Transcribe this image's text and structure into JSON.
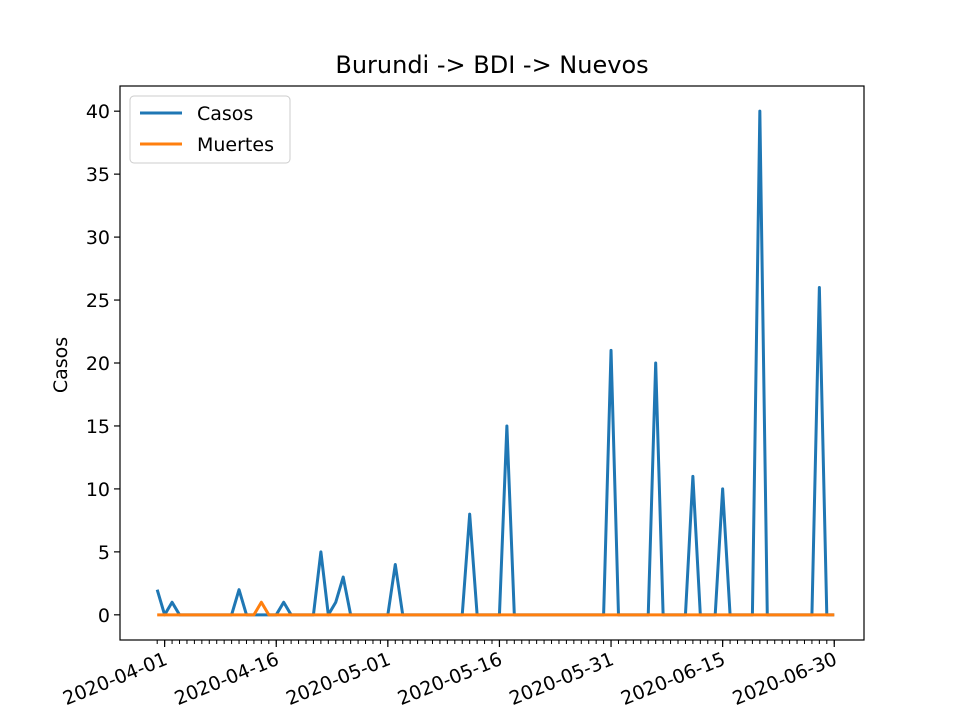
{
  "colors": {
    "casos": "#1f77b4",
    "muertes": "#ff7f0e",
    "axes": "#000000",
    "background": "#ffffff"
  },
  "chart_data": {
    "type": "line",
    "title": "Burundi -> BDI -> Nuevos",
    "xlabel": "",
    "ylabel": "Casos",
    "x_type": "date",
    "x_start": "2020-03-31",
    "x_end": "2020-06-30",
    "xlim": [
      "2020-03-26",
      "2020-07-04"
    ],
    "ylim": [
      -2,
      42
    ],
    "yticks": [
      0,
      5,
      10,
      15,
      20,
      25,
      30,
      35,
      40
    ],
    "xtick_labels": [
      "2020-04-01",
      "2020-04-16",
      "2020-05-01",
      "2020-05-16",
      "2020-05-31",
      "2020-06-15",
      "2020-06-30"
    ],
    "legend_position": "upper-left",
    "grid": false,
    "series": [
      {
        "name": "Casos",
        "points": [
          [
            "2020-03-31",
            2
          ],
          [
            "2020-04-01",
            0
          ],
          [
            "2020-04-02",
            1
          ],
          [
            "2020-04-03",
            0
          ],
          [
            "2020-04-10",
            0
          ],
          [
            "2020-04-11",
            2
          ],
          [
            "2020-04-12",
            0
          ],
          [
            "2020-04-16",
            0
          ],
          [
            "2020-04-17",
            1
          ],
          [
            "2020-04-18",
            0
          ],
          [
            "2020-04-21",
            0
          ],
          [
            "2020-04-22",
            5
          ],
          [
            "2020-04-23",
            0
          ],
          [
            "2020-04-24",
            1
          ],
          [
            "2020-04-25",
            3
          ],
          [
            "2020-04-26",
            0
          ],
          [
            "2020-05-01",
            0
          ],
          [
            "2020-05-02",
            4
          ],
          [
            "2020-05-03",
            0
          ],
          [
            "2020-05-11",
            0
          ],
          [
            "2020-05-12",
            8
          ],
          [
            "2020-05-13",
            0
          ],
          [
            "2020-05-16",
            0
          ],
          [
            "2020-05-17",
            15
          ],
          [
            "2020-05-18",
            0
          ],
          [
            "2020-05-30",
            0
          ],
          [
            "2020-05-31",
            21
          ],
          [
            "2020-06-01",
            0
          ],
          [
            "2020-06-05",
            0
          ],
          [
            "2020-06-06",
            20
          ],
          [
            "2020-06-07",
            0
          ],
          [
            "2020-06-10",
            0
          ],
          [
            "2020-06-11",
            11
          ],
          [
            "2020-06-12",
            0
          ],
          [
            "2020-06-14",
            0
          ],
          [
            "2020-06-15",
            10
          ],
          [
            "2020-06-16",
            0
          ],
          [
            "2020-06-19",
            0
          ],
          [
            "2020-06-20",
            40
          ],
          [
            "2020-06-21",
            0
          ],
          [
            "2020-06-27",
            0
          ],
          [
            "2020-06-28",
            26
          ],
          [
            "2020-06-29",
            0
          ],
          [
            "2020-06-30",
            0
          ]
        ]
      },
      {
        "name": "Muertes",
        "points": [
          [
            "2020-03-31",
            0
          ],
          [
            "2020-04-13",
            0
          ],
          [
            "2020-04-14",
            1
          ],
          [
            "2020-04-15",
            0
          ],
          [
            "2020-06-30",
            0
          ]
        ]
      }
    ]
  }
}
